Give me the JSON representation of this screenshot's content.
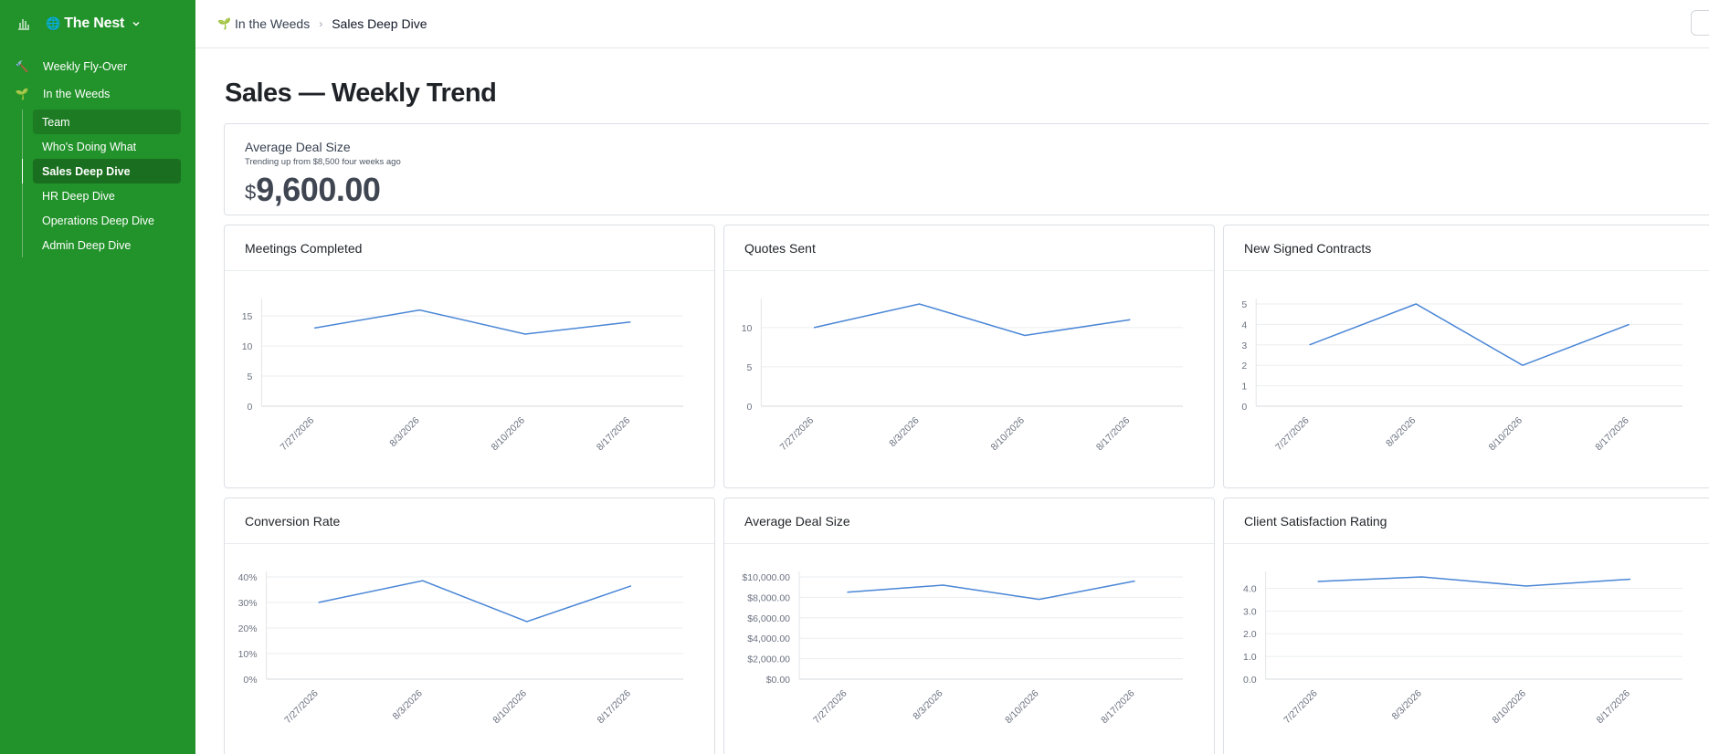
{
  "sidebar": {
    "brand_emoji": "🌐",
    "brand": "The Nest",
    "items": [
      {
        "emoji": "🔨",
        "label": "Weekly Fly-Over"
      },
      {
        "emoji": "🌱",
        "label": "In the Weeds"
      }
    ],
    "sub_items": [
      {
        "label": "Team"
      },
      {
        "label": "Who's Doing What"
      },
      {
        "label": "Sales Deep Dive"
      },
      {
        "label": "HR Deep Dive"
      },
      {
        "label": "Operations Deep Dive"
      },
      {
        "label": "Admin Deep Dive"
      }
    ],
    "active_index": 2,
    "colors": {
      "bg": "#22922a",
      "active": "#1a6e1f"
    }
  },
  "breadcrumb": {
    "parent_emoji": "🌱",
    "parent": "In the Weeds",
    "current": "Sales Deep Dive"
  },
  "page": {
    "title": "Sales — Weekly Trend"
  },
  "kpi": {
    "title": "Average Deal Size",
    "subtitle": "Trending up from $8,500 four weeks ago",
    "currency": "$",
    "value": "9,600.00"
  },
  "chart_data": [
    {
      "type": "line",
      "title": "Meetings Completed",
      "x": [
        "7/27/2026",
        "8/3/2026",
        "8/10/2026",
        "8/17/2026"
      ],
      "values": [
        13,
        16,
        12,
        14
      ],
      "yticks": [
        "0",
        "5",
        "10",
        "15"
      ],
      "ylim": [
        0,
        17
      ],
      "color": "#4a86d6"
    },
    {
      "type": "line",
      "title": "Quotes Sent",
      "x": [
        "7/27/2026",
        "8/3/2026",
        "8/10/2026",
        "8/17/2026"
      ],
      "values": [
        10,
        13,
        9,
        11
      ],
      "yticks": [
        "0",
        "5",
        "10"
      ],
      "ylim": [
        0,
        13
      ],
      "color": "#4a86d6"
    },
    {
      "type": "line",
      "title": "New Signed Contracts",
      "x": [
        "7/27/2026",
        "8/3/2026",
        "8/10/2026",
        "8/17/2026"
      ],
      "values": [
        3,
        5,
        2,
        4
      ],
      "yticks": [
        "0",
        "1",
        "2",
        "3",
        "4",
        "5"
      ],
      "ylim": [
        0,
        5
      ],
      "color": "#4a86d6"
    },
    {
      "type": "line",
      "title": "Conversion Rate",
      "x": [
        "7/27/2026",
        "8/3/2026",
        "8/10/2026",
        "8/17/2026"
      ],
      "values": [
        30,
        38.5,
        22.5,
        36.5
      ],
      "yticks": [
        "0%",
        "10%",
        "20%",
        "30%",
        "40%"
      ],
      "ylim": [
        0,
        40
      ],
      "color": "#4a86d6"
    },
    {
      "type": "line",
      "title": "Average Deal Size",
      "x": [
        "7/27/2026",
        "8/3/2026",
        "8/10/2026",
        "8/17/2026"
      ],
      "values": [
        8500,
        9200,
        7800,
        9600
      ],
      "yticks": [
        "$0.00",
        "$2,000.00",
        "$4,000.00",
        "$6,000.00",
        "$8,000.00",
        "$10,000.00"
      ],
      "ylim": [
        0,
        10000
      ],
      "color": "#4a86d6"
    },
    {
      "type": "line",
      "title": "Client Satisfaction Rating",
      "x": [
        "7/27/2026",
        "8/3/2026",
        "8/10/2026",
        "8/17/2026"
      ],
      "values": [
        4.3,
        4.5,
        4.1,
        4.4
      ],
      "yticks": [
        "0.0",
        "1.0",
        "2.0",
        "3.0",
        "4.0"
      ],
      "ylim": [
        0,
        4.5
      ],
      "color": "#4a86d6"
    }
  ]
}
